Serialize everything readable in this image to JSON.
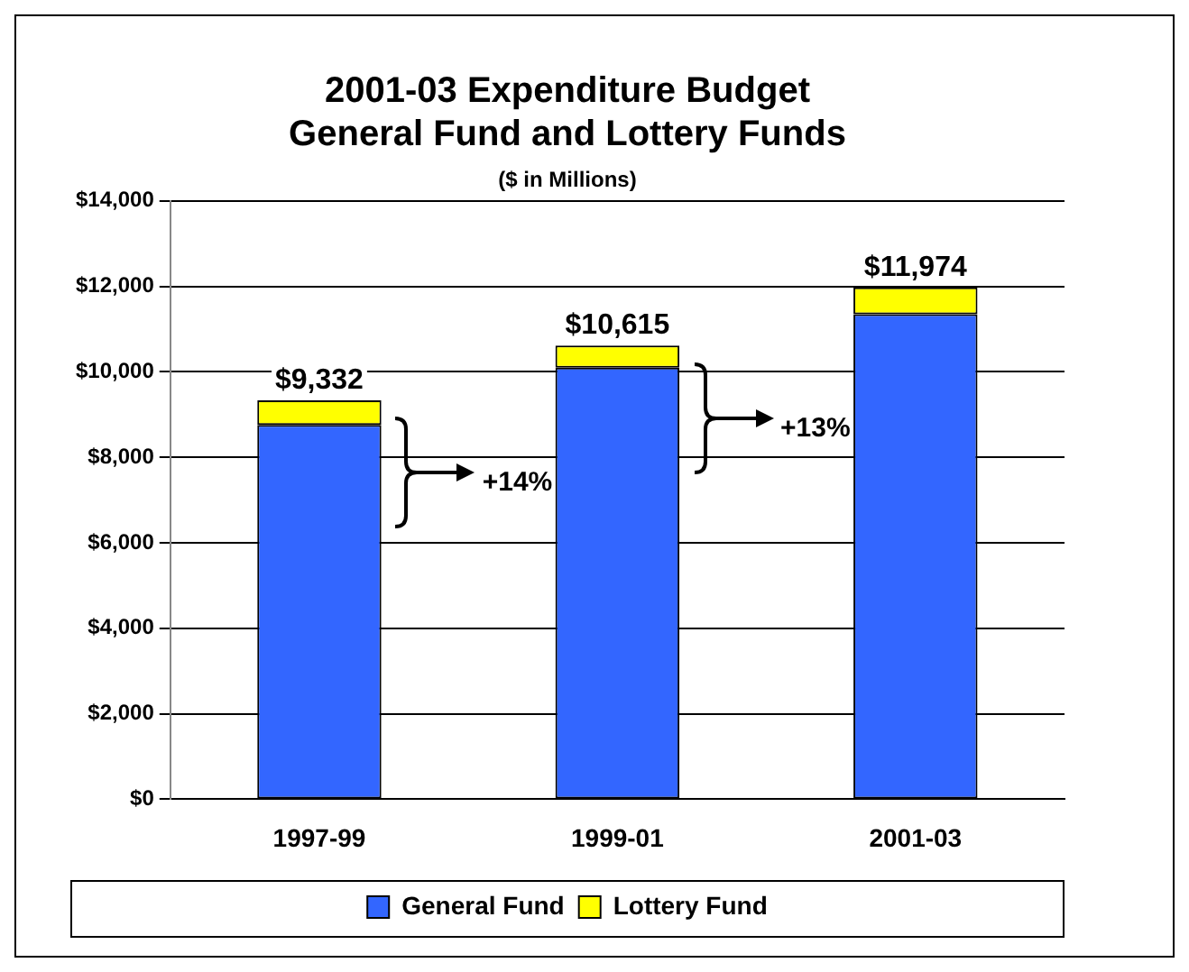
{
  "chart_data": {
    "type": "bar",
    "title": "2001-03 Expenditure Budget\nGeneral Fund and Lottery Funds",
    "subtitle": "($ in Millions)",
    "categories": [
      "1997-99",
      "1999-01",
      "2001-03"
    ],
    "stacked": true,
    "series": [
      {
        "name": "General Fund",
        "color": "#3366ff",
        "values": [
          8760,
          10100,
          11350
        ]
      },
      {
        "name": "Lottery Fund",
        "color": "#ffff00",
        "values": [
          572,
          515,
          624
        ]
      }
    ],
    "totals": [
      "$9,332",
      "$10,615",
      "$11,974"
    ],
    "annotations": [
      "+14%",
      "+13%"
    ],
    "ylim": [
      0,
      14000
    ],
    "yticks": [
      {
        "value": 0,
        "label": "$0"
      },
      {
        "value": 2000,
        "label": "$2,000"
      },
      {
        "value": 4000,
        "label": "$4,000"
      },
      {
        "value": 6000,
        "label": "$6,000"
      },
      {
        "value": 8000,
        "label": "$8,000"
      },
      {
        "value": 10000,
        "label": "$10,000"
      },
      {
        "value": 12000,
        "label": "$12,000"
      },
      {
        "value": 14000,
        "label": "$14,000"
      }
    ],
    "grid": "y",
    "legend": "bottom"
  }
}
